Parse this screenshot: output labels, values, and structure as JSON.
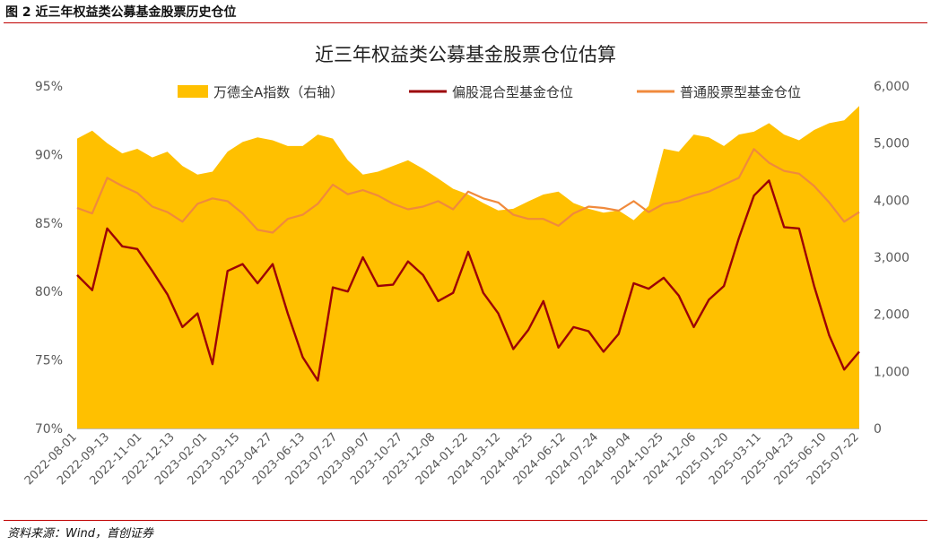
{
  "figure": {
    "header": "图 2 近三年权益类公募基金股票历史仓位",
    "footer": "资料来源：Wind，首创证券"
  },
  "colors": {
    "index": "#FFC000",
    "mixed": "#9C0006",
    "stock": "#F08A3C",
    "header_rule": "#C00000",
    "axis_text": "#595959"
  },
  "chart_data": {
    "type": "area",
    "title": "近三年权益类公募基金股票仓位估算",
    "legend_position": "top",
    "grid": false,
    "y_left": {
      "min": 70,
      "max": 95,
      "ticks": [
        "70%",
        "75%",
        "80%",
        "85%",
        "90%",
        "95%"
      ]
    },
    "y_right": {
      "min": 0,
      "max": 6000,
      "ticks": [
        "0",
        "1,000",
        "2,000",
        "3,000",
        "4,000",
        "5,000",
        "6,000"
      ]
    },
    "x_tick_labels": [
      "2022-08-01",
      "2022-09-13",
      "2022-11-01",
      "2022-12-13",
      "2023-02-01",
      "2023-03-15",
      "2023-04-27",
      "2023-06-13",
      "2023-07-27",
      "2023-09-07",
      "2023-10-27",
      "2023-12-08",
      "2024-01-22",
      "2024-03-12",
      "2024-04-25",
      "2024-06-12",
      "2024-07-24",
      "2024-09-04",
      "2024-10-25",
      "2024-12-06",
      "2025-01-20",
      "2025-03-11",
      "2025-04-23",
      "2025-06-10",
      "2025-07-22"
    ],
    "series": [
      {
        "name": "万德全A指数（右轴）",
        "kind": "area",
        "axis": "right",
        "values": [
          5080,
          5220,
          5000,
          4820,
          4900,
          4750,
          4850,
          4600,
          4450,
          4500,
          4850,
          5020,
          5100,
          5050,
          4950,
          4950,
          5150,
          5080,
          4700,
          4450,
          4500,
          4600,
          4700,
          4550,
          4380,
          4200,
          4100,
          3950,
          3820,
          3850,
          3980,
          4100,
          4150,
          3950,
          3850,
          3780,
          3820,
          3650,
          3900,
          4900,
          4850,
          5150,
          5100,
          4950,
          5150,
          5200,
          5350,
          5150,
          5050,
          5230,
          5350,
          5400,
          5650
        ]
      },
      {
        "name": "偏股混合型基金仓位",
        "kind": "line",
        "axis": "left",
        "values": [
          81.2,
          80.1,
          84.6,
          83.3,
          83.1,
          81.5,
          79.8,
          77.4,
          78.4,
          74.7,
          81.5,
          82.0,
          80.6,
          82.0,
          78.4,
          75.2,
          73.5,
          80.3,
          80.0,
          82.5,
          80.4,
          80.5,
          82.2,
          81.2,
          79.3,
          79.9,
          82.9,
          79.9,
          78.4,
          75.8,
          77.2,
          79.3,
          75.9,
          77.4,
          77.1,
          75.6,
          76.9,
          80.6,
          80.2,
          81.0,
          79.7,
          77.4,
          79.4,
          80.4,
          83.9,
          87.0,
          88.1,
          84.7,
          84.6,
          80.4,
          76.8,
          74.3,
          75.6
        ]
      },
      {
        "name": "普通股票型基金仓位",
        "kind": "line",
        "axis": "left",
        "values": [
          86.1,
          85.7,
          88.3,
          87.7,
          87.2,
          86.2,
          85.8,
          85.1,
          86.4,
          86.8,
          86.6,
          85.7,
          84.5,
          84.3,
          85.3,
          85.6,
          86.4,
          87.8,
          87.1,
          87.4,
          87.0,
          86.4,
          86.0,
          86.2,
          86.6,
          86.0,
          87.3,
          86.8,
          86.5,
          85.6,
          85.3,
          85.3,
          84.8,
          85.7,
          86.2,
          86.1,
          85.9,
          86.6,
          85.8,
          86.4,
          86.6,
          87.0,
          87.3,
          87.8,
          88.3,
          90.4,
          89.4,
          88.8,
          88.6,
          87.7,
          86.5,
          85.1,
          85.8
        ]
      }
    ]
  }
}
